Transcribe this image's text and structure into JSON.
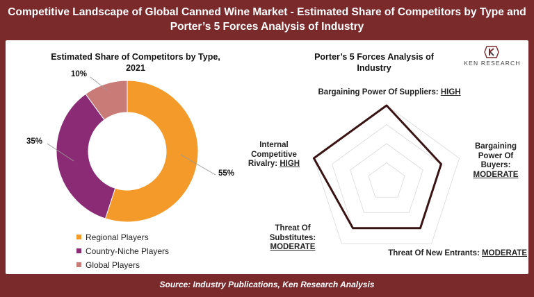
{
  "header": {
    "title": "Competitive Landscape of Global Canned Wine Market - Estimated Share of Competitors by Type and Porter’s 5 Forces Analysis of Industry"
  },
  "footer": {
    "source": "Source: Industry Publications, Ken Research Analysis"
  },
  "logo": {
    "text": "KEN RESEARCH",
    "icon": "ken-research-logo-icon"
  },
  "chart_data": [
    {
      "type": "pie",
      "subtype": "donut",
      "title": "Estimated Share of Competitors by Type, 2021",
      "categories": [
        "Regional Players",
        "Country-Niche Players",
        "Global Players"
      ],
      "values": [
        55,
        35,
        10
      ],
      "value_labels": [
        "55%",
        "35%",
        "10%"
      ],
      "colors": [
        "#f39a2a",
        "#8b2a75",
        "#c97b78"
      ],
      "legend": "bottom-left"
    },
    {
      "type": "radar",
      "title": "Porter’s 5 Forces Analysis of Industry",
      "axes": [
        {
          "name": "Bargaining Power Of Suppliers:",
          "level": "HIGH"
        },
        {
          "name": "Bargaining Power Of Buyers:",
          "level": "MODERATE"
        },
        {
          "name": "Threat Of New Entrants:",
          "level": "MODERATE"
        },
        {
          "name": "Threat Of Substitutes:",
          "level": "MODERATE"
        },
        {
          "name": "Internal Competitive Rivalry:",
          "level": "HIGH"
        }
      ],
      "values": [
        4,
        3,
        3,
        3,
        4
      ],
      "range": [
        0,
        4
      ],
      "grid_levels": 4,
      "line_color": "#3a1414",
      "grid_color": "#d9d9d9"
    }
  ]
}
